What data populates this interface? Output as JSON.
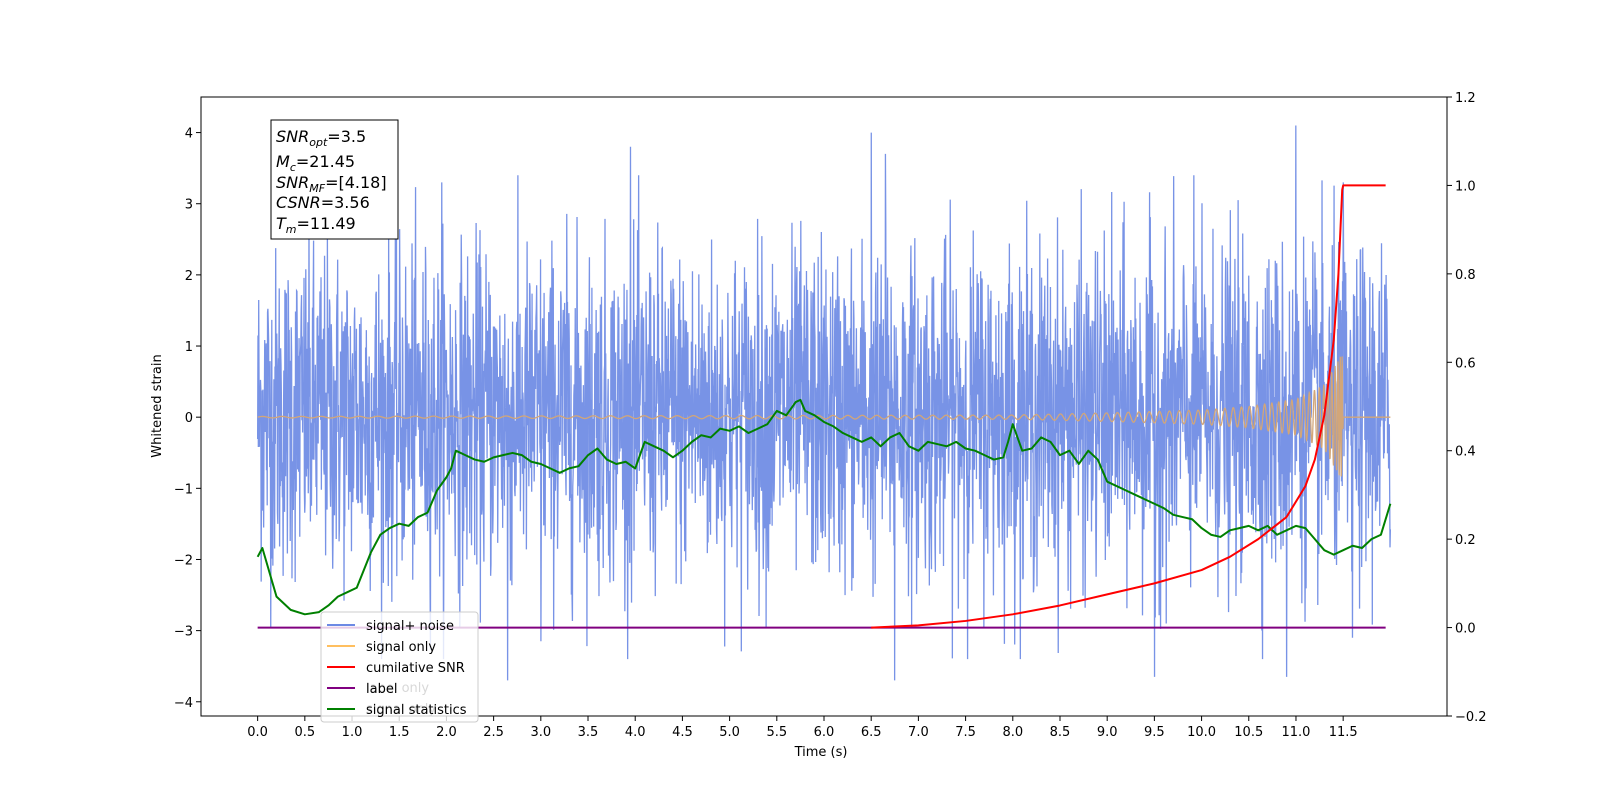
{
  "chart_data": {
    "type": "line",
    "xlabel": "Time (s)",
    "ylabel": "Whitened strain",
    "xlim": [
      -0.6,
      12.6
    ],
    "ylim": [
      -4.2,
      4.5
    ],
    "y2lim": [
      -0.2,
      1.2
    ],
    "x_ticks": [
      "0.0",
      "0.5",
      "1.0",
      "1.5",
      "2.0",
      "2.5",
      "3.0",
      "3.5",
      "4.0",
      "4.5",
      "5.0",
      "5.5",
      "6.0",
      "6.5",
      "7.0",
      "7.5",
      "8.0",
      "8.5",
      "9.0",
      "9.5",
      "10.0",
      "10.5",
      "11.0",
      "11.5"
    ],
    "y_ticks": [
      "−4",
      "−3",
      "−2",
      "−1",
      "0",
      "1",
      "2",
      "3",
      "4"
    ],
    "y2_ticks": [
      "−0.2",
      "0.0",
      "0.2",
      "0.4",
      "0.6",
      "0.8",
      "1.0",
      "1.2"
    ],
    "annotation": {
      "snr_opt": {
        "base": "SNR",
        "sub": "opt",
        "value": "=3.5"
      },
      "mc": {
        "base": "M",
        "sub": "c",
        "value": "=21.45"
      },
      "snr_mf": {
        "base": "SNR",
        "sub": "MF",
        "value": "=[4.18]"
      },
      "csnr": {
        "base": "CSNR",
        "value": "=3.56"
      },
      "tm": {
        "base": "T",
        "sub": "m",
        "value": "=11.49"
      }
    },
    "legend_position": "lower-left",
    "legend": [
      {
        "label": "signal+ noise",
        "color": "#6c8ae4"
      },
      {
        "label": "signal only",
        "color": "#ffbf5f"
      },
      {
        "label": "cumilative SNR",
        "color": "#ff0000"
      },
      {
        "label": "label",
        "color": "#800080"
      },
      {
        "label": "signal statistics",
        "color": "#008000"
      }
    ],
    "hidden_legend_text": {
      "line2": "signal only",
      "line4": "label only",
      "line5": "signal only"
    },
    "series": [
      {
        "name": "signal+ noise",
        "axis": "left",
        "color": "#6c8ae4",
        "x_range": [
          0.0,
          12.0
        ],
        "envelope_typical": [
          -1.8,
          1.9
        ],
        "notable_peaks": [
          [
            1.95,
            3.3
          ],
          [
            3.95,
            3.8
          ],
          [
            6.5,
            4.0
          ],
          [
            11.0,
            4.1
          ],
          [
            6.65,
            3.7
          ],
          [
            11.5,
            3.3
          ]
        ],
        "notable_troughs": [
          [
            2.65,
            -3.7
          ],
          [
            3.0,
            -3.15
          ],
          [
            6.75,
            -3.7
          ],
          [
            9.5,
            -3.65
          ],
          [
            10.9,
            -3.65
          ],
          [
            11.6,
            -3.1
          ]
        ]
      },
      {
        "name": "signal only",
        "axis": "left",
        "color": "#d2a679",
        "x": [
          0.0,
          8.0,
          9.0,
          10.0,
          10.5,
          11.0,
          11.3,
          11.49,
          11.5,
          12.0
        ],
        "amplitude": [
          0.01,
          0.03,
          0.06,
          0.1,
          0.15,
          0.25,
          0.45,
          0.9,
          0.0,
          0.0
        ]
      },
      {
        "name": "cumilative SNR",
        "axis": "right",
        "color": "#ff0000",
        "x": [
          6.5,
          7.0,
          7.5,
          8.0,
          8.5,
          9.0,
          9.5,
          10.0,
          10.3,
          10.6,
          10.9,
          11.1,
          11.2,
          11.3,
          11.4,
          11.45,
          11.49,
          11.5,
          11.95
        ],
        "values": [
          0.0,
          0.005,
          0.015,
          0.03,
          0.05,
          0.075,
          0.1,
          0.13,
          0.16,
          0.2,
          0.25,
          0.32,
          0.38,
          0.48,
          0.65,
          0.8,
          0.99,
          1.0,
          1.0
        ]
      },
      {
        "name": "label",
        "axis": "right",
        "color": "#800080",
        "x": [
          0.0,
          11.95
        ],
        "values": [
          0.0,
          0.0
        ]
      },
      {
        "name": "signal statistics",
        "axis": "right",
        "color": "#008000",
        "x": [
          0.0,
          0.05,
          0.2,
          0.35,
          0.5,
          0.65,
          0.75,
          0.85,
          0.95,
          1.05,
          1.2,
          1.3,
          1.4,
          1.5,
          1.6,
          1.7,
          1.8,
          1.9,
          2.0,
          2.05,
          2.1,
          2.2,
          2.3,
          2.4,
          2.5,
          2.6,
          2.7,
          2.8,
          2.9,
          3.0,
          3.1,
          3.2,
          3.3,
          3.4,
          3.5,
          3.6,
          3.7,
          3.8,
          3.9,
          4.0,
          4.1,
          4.2,
          4.3,
          4.4,
          4.5,
          4.6,
          4.7,
          4.8,
          4.9,
          5.0,
          5.1,
          5.2,
          5.3,
          5.4,
          5.5,
          5.6,
          5.7,
          5.75,
          5.8,
          5.9,
          6.0,
          6.1,
          6.2,
          6.3,
          6.4,
          6.5,
          6.6,
          6.7,
          6.8,
          6.9,
          7.0,
          7.1,
          7.2,
          7.3,
          7.4,
          7.5,
          7.6,
          7.7,
          7.8,
          7.9,
          7.95,
          8.0,
          8.1,
          8.2,
          8.3,
          8.4,
          8.5,
          8.6,
          8.7,
          8.8,
          8.9,
          9.0,
          9.1,
          9.2,
          9.3,
          9.4,
          9.5,
          9.6,
          9.7,
          9.8,
          9.9,
          10.0,
          10.1,
          10.2,
          10.3,
          10.4,
          10.5,
          10.6,
          10.7,
          10.8,
          10.9,
          11.0,
          11.1,
          11.2,
          11.3,
          11.4,
          11.5,
          11.6,
          11.7,
          11.8,
          11.9,
          12.0
        ],
        "values": [
          0.16,
          0.18,
          0.07,
          0.04,
          0.03,
          0.035,
          0.05,
          0.07,
          0.08,
          0.09,
          0.17,
          0.21,
          0.225,
          0.235,
          0.23,
          0.25,
          0.26,
          0.31,
          0.34,
          0.36,
          0.4,
          0.39,
          0.38,
          0.375,
          0.385,
          0.39,
          0.395,
          0.39,
          0.375,
          0.37,
          0.36,
          0.35,
          0.36,
          0.365,
          0.39,
          0.405,
          0.38,
          0.37,
          0.375,
          0.36,
          0.42,
          0.41,
          0.4,
          0.385,
          0.4,
          0.42,
          0.435,
          0.43,
          0.45,
          0.445,
          0.455,
          0.44,
          0.45,
          0.46,
          0.49,
          0.48,
          0.51,
          0.515,
          0.49,
          0.48,
          0.465,
          0.455,
          0.44,
          0.43,
          0.42,
          0.43,
          0.41,
          0.43,
          0.44,
          0.41,
          0.4,
          0.42,
          0.415,
          0.41,
          0.42,
          0.405,
          0.4,
          0.39,
          0.38,
          0.385,
          0.42,
          0.46,
          0.4,
          0.405,
          0.43,
          0.42,
          0.39,
          0.4,
          0.37,
          0.4,
          0.38,
          0.33,
          0.32,
          0.31,
          0.3,
          0.29,
          0.28,
          0.27,
          0.255,
          0.25,
          0.245,
          0.225,
          0.21,
          0.205,
          0.22,
          0.225,
          0.23,
          0.22,
          0.23,
          0.21,
          0.22,
          0.23,
          0.225,
          0.2,
          0.175,
          0.165,
          0.175,
          0.185,
          0.18,
          0.2,
          0.21,
          0.28
        ]
      }
    ]
  }
}
